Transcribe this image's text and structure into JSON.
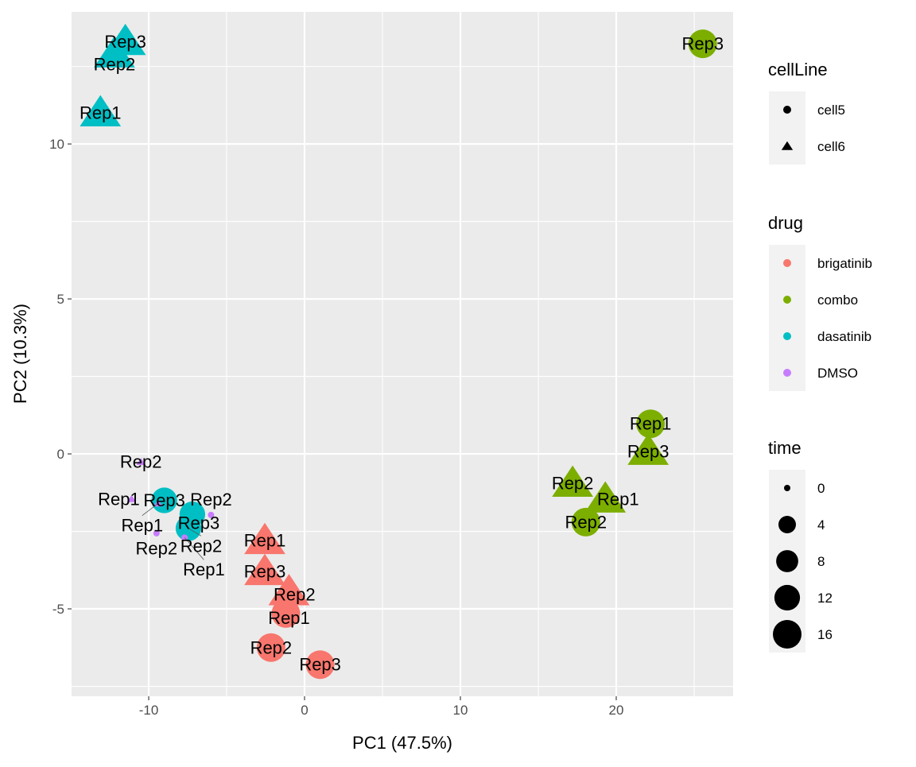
{
  "chart_data": {
    "type": "scatter",
    "xlabel": "PC1 (47.5%)",
    "ylabel": "PC2 (10.3%)",
    "xlim": [
      -14.95,
      27.5
    ],
    "ylim": [
      -7.82,
      14.26
    ],
    "xticks": [
      -10,
      0,
      10,
      20
    ],
    "yticks": [
      -5,
      0,
      5,
      10
    ],
    "grid": true,
    "legend_placement": "right",
    "legends": {
      "cellLine": {
        "title": "cellLine",
        "entries": [
          {
            "label": "cell5",
            "shape": "circle"
          },
          {
            "label": "cell6",
            "shape": "triangle"
          }
        ]
      },
      "drug": {
        "title": "drug",
        "entries": [
          {
            "label": "brigatinib",
            "color": "#F8766D"
          },
          {
            "label": "combo",
            "color": "#7CAE00"
          },
          {
            "label": "dasatinib",
            "color": "#00BFC4"
          },
          {
            "label": "DMSO",
            "color": "#C77CFF"
          }
        ]
      },
      "time": {
        "title": "time",
        "entries": [
          {
            "label": "0",
            "value": 0
          },
          {
            "label": "4",
            "value": 4
          },
          {
            "label": "8",
            "value": 8
          },
          {
            "label": "12",
            "value": 12
          },
          {
            "label": "16",
            "value": 16
          }
        ]
      }
    },
    "points": [
      {
        "x": -11.5,
        "y": 13.3,
        "drug": "dasatinib",
        "cellLine": "cell6",
        "time": 16,
        "label": "Rep3"
      },
      {
        "x": -12.2,
        "y": 12.9,
        "drug": "dasatinib",
        "cellLine": "cell6",
        "time": 16,
        "label": "Rep2"
      },
      {
        "x": -13.1,
        "y": 11.0,
        "drug": "dasatinib",
        "cellLine": "cell6",
        "time": 16,
        "label": "Rep1"
      },
      {
        "x": -9.0,
        "y": -1.5,
        "drug": "dasatinib",
        "cellLine": "cell5",
        "time": 12,
        "label": "Rep3"
      },
      {
        "x": -7.2,
        "y": -1.95,
        "drug": "dasatinib",
        "cellLine": "cell5",
        "time": 12,
        "label": "Rep3"
      },
      {
        "x": -7.45,
        "y": -2.4,
        "drug": "dasatinib",
        "cellLine": "cell5",
        "time": 12,
        "label": "Rep2"
      },
      {
        "x": -10.5,
        "y": -0.26,
        "drug": "DMSO",
        "cellLine": "cell6",
        "time": 0,
        "label": "Rep2"
      },
      {
        "x": -11.1,
        "y": -1.46,
        "drug": "DMSO",
        "cellLine": "cell6",
        "time": 0,
        "label": "Rep1"
      },
      {
        "x": -9.4,
        "y": -1.6,
        "drug": "DMSO",
        "cellLine": "cell6",
        "time": 0,
        "label": "Rep1"
      },
      {
        "x": -6.0,
        "y": -1.97,
        "drug": "DMSO",
        "cellLine": "cell5",
        "time": 0,
        "label": "Rep2"
      },
      {
        "x": -9.5,
        "y": -2.56,
        "drug": "DMSO",
        "cellLine": "cell5",
        "time": 0,
        "label": "Rep2"
      },
      {
        "x": -7.7,
        "y": -2.7,
        "drug": "DMSO",
        "cellLine": "cell5",
        "time": 0,
        "label": "Rep1"
      },
      {
        "x": -2.55,
        "y": -2.8,
        "drug": "brigatinib",
        "cellLine": "cell6",
        "time": 16,
        "label": "Rep1"
      },
      {
        "x": -2.55,
        "y": -3.8,
        "drug": "brigatinib",
        "cellLine": "cell6",
        "time": 16,
        "label": "Rep3"
      },
      {
        "x": -1.0,
        "y": -4.45,
        "drug": "brigatinib",
        "cellLine": "cell6",
        "time": 16,
        "label": "Rep2"
      },
      {
        "x": -1.2,
        "y": -5.15,
        "drug": "brigatinib",
        "cellLine": "cell5",
        "time": 16,
        "label": "Rep1"
      },
      {
        "x": -2.15,
        "y": -6.25,
        "drug": "brigatinib",
        "cellLine": "cell5",
        "time": 16,
        "label": "Rep2"
      },
      {
        "x": 1.0,
        "y": -6.8,
        "drug": "brigatinib",
        "cellLine": "cell5",
        "time": 16,
        "label": "Rep3"
      },
      {
        "x": 25.55,
        "y": 13.23,
        "drug": "combo",
        "cellLine": "cell5",
        "time": 16,
        "label": "Rep3"
      },
      {
        "x": 22.2,
        "y": 0.97,
        "drug": "combo",
        "cellLine": "cell5",
        "time": 16,
        "label": "Rep1"
      },
      {
        "x": 22.05,
        "y": 0.08,
        "drug": "combo",
        "cellLine": "cell6",
        "time": 16,
        "label": "Rep3"
      },
      {
        "x": 17.2,
        "y": -0.95,
        "drug": "combo",
        "cellLine": "cell6",
        "time": 16,
        "label": "Rep2"
      },
      {
        "x": 19.3,
        "y": -1.46,
        "drug": "combo",
        "cellLine": "cell6",
        "time": 16,
        "label": "Rep1"
      },
      {
        "x": 18.05,
        "y": -2.2,
        "drug": "combo",
        "cellLine": "cell5",
        "time": 16,
        "label": "Rep2"
      }
    ]
  }
}
